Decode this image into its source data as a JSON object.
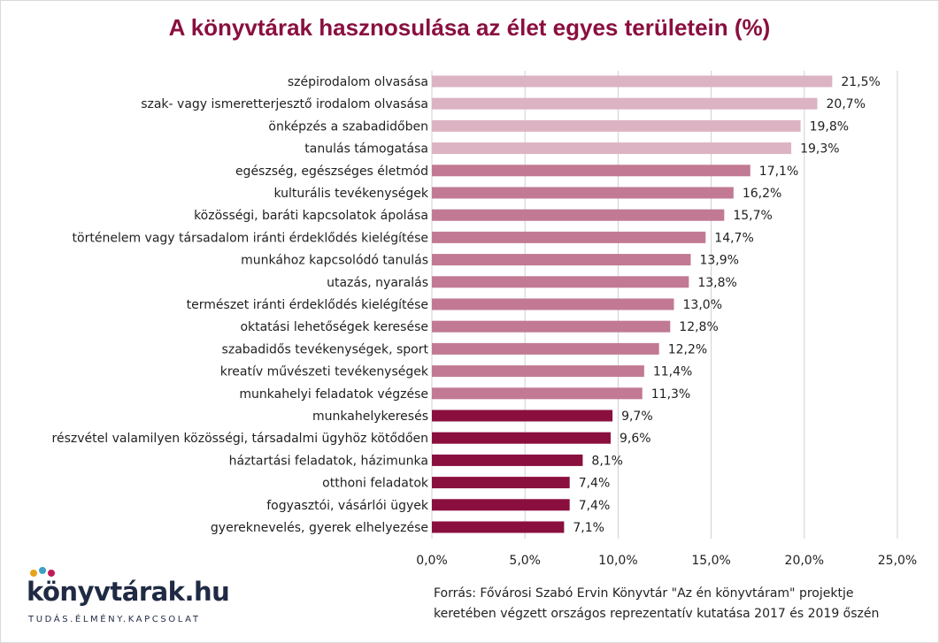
{
  "chart_data": {
    "type": "bar",
    "orientation": "horizontal",
    "title": "A könyvtárak hasznosulása az élet egyes területein (%)",
    "categories": [
      "szépirodalom olvasása",
      "szak- vagy ismeretterjesztő irodalom olvasása",
      "önképzés a szabadidőben",
      "tanulás támogatása",
      "egészség, egészséges életmód",
      "kulturális tevékenységek",
      "közösségi, baráti kapcsolatok ápolása",
      "történelem vagy társadalom iránti érdeklődés kielégítése",
      "munkához kapcsolódó tanulás",
      "utazás, nyaralás",
      "természet iránti érdeklődés kielégítése",
      "oktatási lehetőségek keresése",
      "szabadidős tevékenységek, sport",
      "kreatív művészeti tevékenységek",
      "munkahelyi feladatok végzése",
      "munkahelykeresés",
      "részvétel valamilyen közösségi, társadalmi ügyhöz kötődően",
      "háztartási feladatok, házimunka",
      "otthoni feladatok",
      "fogyasztói, vásárlói ügyek",
      "gyereknevelés, gyerek elhelyezése"
    ],
    "values": [
      21.5,
      20.7,
      19.8,
      19.3,
      17.1,
      16.2,
      15.7,
      14.7,
      13.9,
      13.8,
      13.0,
      12.8,
      12.2,
      11.4,
      11.3,
      9.7,
      9.6,
      8.1,
      7.4,
      7.4,
      7.1
    ],
    "value_labels": [
      "21,5%",
      "20,7%",
      "19,8%",
      "19,3%",
      "17,1%",
      "16,2%",
      "15,7%",
      "14,7%",
      "13,9%",
      "13,8%",
      "13,0%",
      "12,8%",
      "12,2%",
      "11,4%",
      "11,3%",
      "9,7%",
      "9,6%",
      "8,1%",
      "7,4%",
      "7,4%",
      "7,1%"
    ],
    "bar_groups": [
      "light",
      "light",
      "light",
      "light",
      "medium",
      "medium",
      "medium",
      "medium",
      "medium",
      "medium",
      "medium",
      "medium",
      "medium",
      "medium",
      "medium",
      "dark",
      "dark",
      "dark",
      "dark",
      "dark",
      "dark"
    ],
    "group_colors": {
      "light": "#dcb3c3",
      "medium": "#c27993",
      "dark": "#8a0f3f"
    },
    "xlim": [
      0,
      25
    ],
    "xticks": [
      0,
      5,
      10,
      15,
      20,
      25
    ],
    "xtick_labels": [
      "0,0%",
      "5,0%",
      "10,0%",
      "15,0%",
      "20,0%",
      "25,0%"
    ],
    "grid": true,
    "legend": "none"
  },
  "colors": {
    "title": "#8a0f3f",
    "gridline": "#d0d0d0",
    "label_text": "#1f1f1f",
    "logo_text": "#1f2a44"
  },
  "logo": {
    "text": "könyvtárak.hu",
    "tagline": "TUDÁS.ÉLMÉNY.KAPCSOLAT"
  },
  "source": {
    "line1": "Forrás: Fővárosi Szabó Ervin Könyvtár \"Az én könyvtáram\" projektje",
    "line2": "keretében végzett országos reprezentatív kutatása 2017 és 2019 őszén"
  }
}
